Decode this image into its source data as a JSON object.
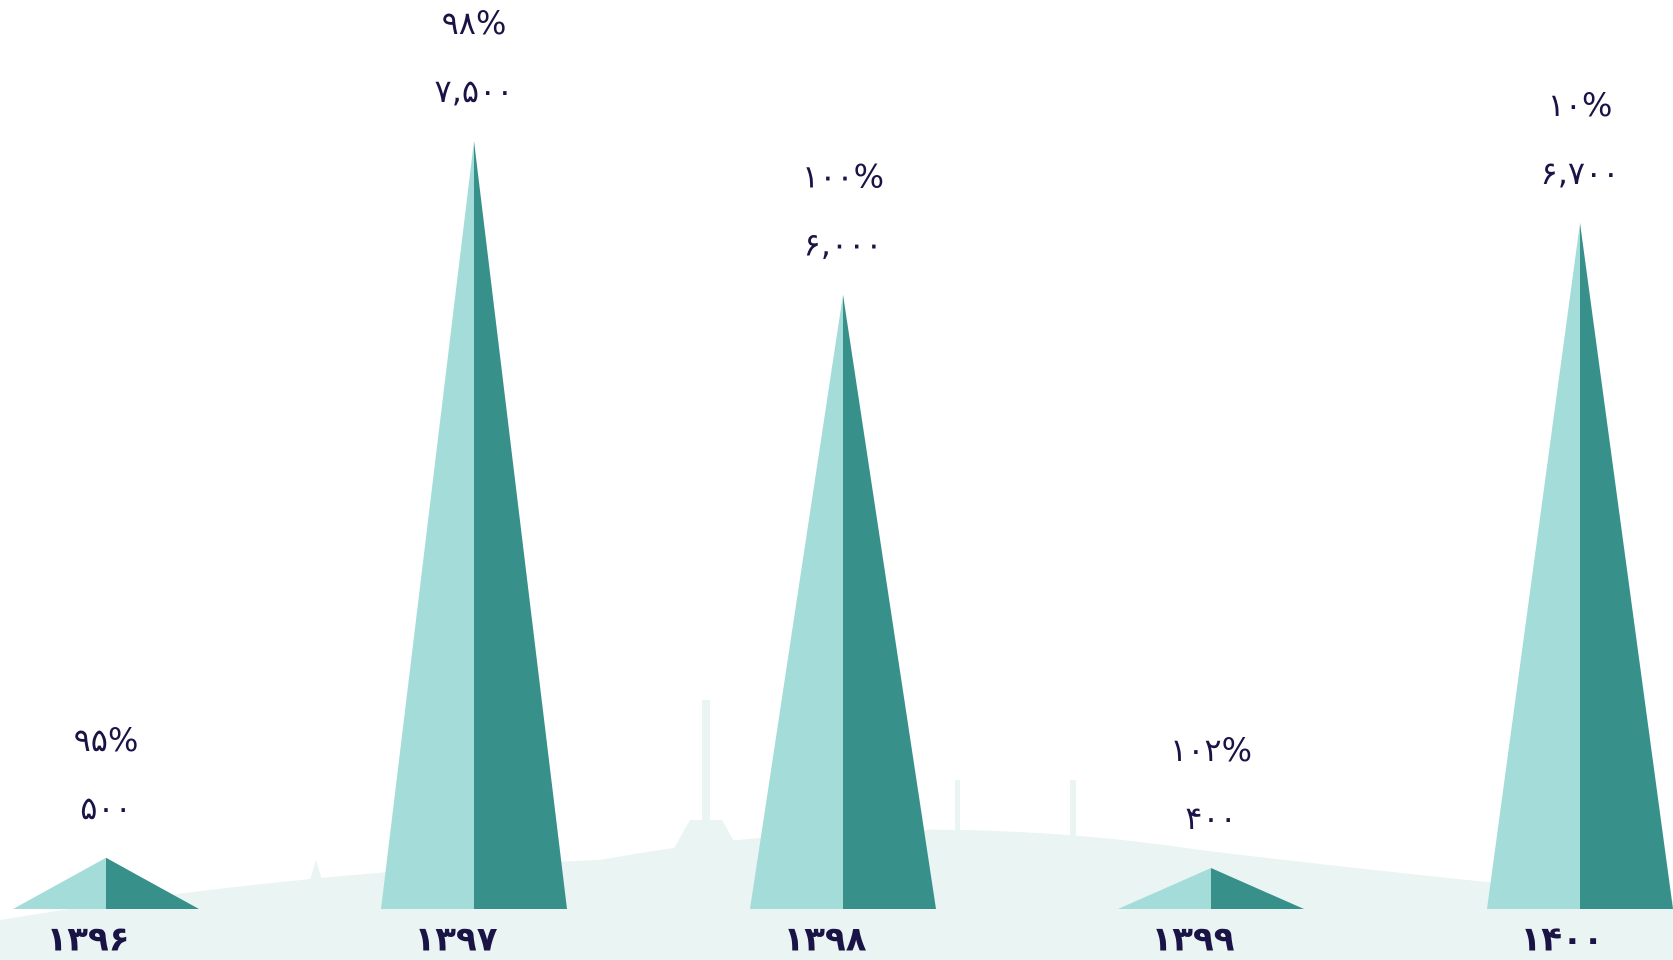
{
  "chart_data": {
    "type": "pyramid",
    "categories": [
      "۱۳۹۶",
      "۱۳۹۷",
      "۱۳۹۸",
      "۱۳۹۹",
      "۱۴۰۰"
    ],
    "values": [
      500,
      7500,
      6000,
      400,
      6700
    ],
    "value_labels": [
      "۵۰۰",
      "۷,۵۰۰",
      "۶,۰۰۰",
      "۴۰۰",
      "۶,۷۰۰"
    ],
    "percent_labels": [
      "۹۵%",
      "۹۸%",
      "۱۰۰%",
      "۱۰۲%",
      "۱۰%"
    ],
    "colors": [
      "#a3dcd9",
      "#37918a"
    ]
  }
}
